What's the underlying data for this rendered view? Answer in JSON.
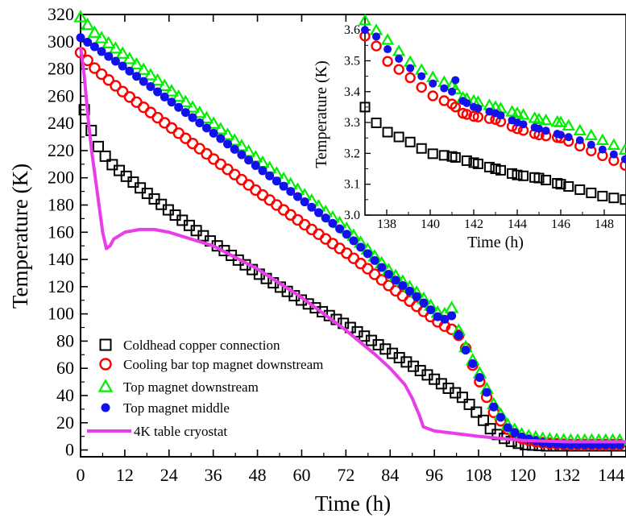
{
  "chart_data": [
    {
      "type": "scatter",
      "xlabel": "Time (h)",
      "ylabel": "Temperature (K)",
      "xlim": [
        0,
        148
      ],
      "ylim": [
        -5,
        320
      ],
      "xticks": [
        0,
        12,
        24,
        36,
        48,
        60,
        72,
        84,
        96,
        108,
        120,
        132,
        144
      ],
      "yticks": [
        0,
        20,
        40,
        60,
        80,
        100,
        120,
        140,
        160,
        180,
        200,
        220,
        240,
        260,
        280,
        300,
        320
      ],
      "legend_position": "lower-left",
      "grid": false,
      "series": [
        {
          "name": "Coldhead copper connection",
          "marker": "open-square",
          "color": "#000000",
          "curve": [
            [
              1,
              250
            ],
            [
              2,
              242
            ],
            [
              4,
              226
            ],
            [
              8,
              211
            ],
            [
              16,
              193
            ],
            [
              24,
              176
            ],
            [
              36,
              152
            ],
            [
              48,
              130
            ],
            [
              60,
              110
            ],
            [
              72,
              92
            ],
            [
              84,
              72
            ],
            [
              96,
              52
            ],
            [
              104,
              38
            ],
            [
              108,
              26
            ],
            [
              112,
              13
            ],
            [
              116,
              7
            ],
            [
              120,
              4
            ],
            [
              126,
              3
            ],
            [
              132,
              3
            ],
            [
              148,
              3
            ]
          ]
        },
        {
          "name": "Cooling bar top magnet downstream",
          "marker": "open-circle",
          "color": "#ff0000",
          "curve": [
            [
              0,
              292
            ],
            [
              4,
              280
            ],
            [
              12,
              262
            ],
            [
              24,
              238
            ],
            [
              36,
              214
            ],
            [
              48,
              190
            ],
            [
              60,
              167
            ],
            [
              72,
              145
            ],
            [
              78,
              133
            ],
            [
              84,
              120
            ],
            [
              92,
              104
            ],
            [
              98,
              92
            ],
            [
              102,
              87
            ],
            [
              104,
              78
            ],
            [
              108,
              52
            ],
            [
              112,
              28
            ],
            [
              116,
              15
            ],
            [
              120,
              8
            ],
            [
              126,
              5
            ],
            [
              132,
              4
            ],
            [
              148,
              4
            ]
          ]
        },
        {
          "name": "Top magnet downstream",
          "marker": "open-triangle",
          "color": "#00ee00",
          "curve": [
            [
              0,
              318
            ],
            [
              4,
              306
            ],
            [
              12,
              290
            ],
            [
              24,
              265
            ],
            [
              36,
              240
            ],
            [
              48,
              214
            ],
            [
              60,
              189
            ],
            [
              72,
              163
            ],
            [
              78,
              147
            ],
            [
              84,
              131
            ],
            [
              92,
              114
            ],
            [
              98,
              98
            ],
            [
              101,
              105
            ],
            [
              102,
              92
            ],
            [
              104,
              78
            ],
            [
              108,
              58
            ],
            [
              112,
              34
            ],
            [
              116,
              18
            ],
            [
              120,
              11
            ],
            [
              126,
              8
            ],
            [
              132,
              7
            ],
            [
              148,
              7
            ]
          ]
        },
        {
          "name": "Top magnet middle",
          "marker": "filled-circle",
          "color": "#1111ee",
          "curve": [
            [
              0,
              303
            ],
            [
              4,
              296
            ],
            [
              12,
              281
            ],
            [
              24,
              257
            ],
            [
              36,
              233
            ],
            [
              48,
              208
            ],
            [
              60,
              184
            ],
            [
              72,
              159
            ],
            [
              78,
              144
            ],
            [
              84,
              128
            ],
            [
              92,
              111
            ],
            [
              98,
              95
            ],
            [
              101,
              99
            ],
            [
              102,
              88
            ],
            [
              104,
              76
            ],
            [
              108,
              55
            ],
            [
              112,
              32
            ],
            [
              116,
              16
            ],
            [
              120,
              9
            ],
            [
              126,
              5
            ],
            [
              132,
              4
            ],
            [
              148,
              4
            ]
          ]
        },
        {
          "name": "4K table cryostat",
          "marker": "line",
          "color": "#e83de8",
          "curve": [
            [
              0,
              296
            ],
            [
              1,
              275
            ],
            [
              2,
              245
            ],
            [
              3,
              220
            ],
            [
              4,
              200
            ],
            [
              5,
              180
            ],
            [
              6,
              160
            ],
            [
              7,
              148
            ],
            [
              8,
              150
            ],
            [
              9,
              155
            ],
            [
              12,
              160
            ],
            [
              16,
              162
            ],
            [
              20,
              162
            ],
            [
              24,
              160
            ],
            [
              36,
              150
            ],
            [
              48,
              133
            ],
            [
              60,
              112
            ],
            [
              72,
              88
            ],
            [
              80,
              70
            ],
            [
              84,
              60
            ],
            [
              88,
              48
            ],
            [
              90,
              38
            ],
            [
              92,
              25
            ],
            [
              93,
              17
            ],
            [
              96,
              14
            ],
            [
              108,
              10
            ],
            [
              120,
              7
            ],
            [
              132,
              6
            ],
            [
              148,
              6
            ]
          ]
        }
      ]
    },
    {
      "type": "scatter",
      "xlabel": "Time (h)",
      "ylabel": "Temperature (K)",
      "xlim": [
        137,
        149
      ],
      "ylim": [
        3.0,
        3.65
      ],
      "xticks": [
        138,
        140,
        142,
        144,
        146,
        148
      ],
      "yticks": [
        3.0,
        3.1,
        3.2,
        3.3,
        3.4,
        3.5,
        3.6
      ],
      "grid": false,
      "series": [
        {
          "marker": "open-square",
          "color": "#000000",
          "curve": [
            [
              137,
              3.35
            ],
            [
              137.5,
              3.3
            ],
            [
              138,
              3.27
            ],
            [
              139,
              3.24
            ],
            [
              140,
              3.2
            ],
            [
              141,
              3.19
            ],
            [
              142,
              3.17
            ],
            [
              143,
              3.15
            ],
            [
              144,
              3.13
            ],
            [
              145,
              3.12
            ],
            [
              146,
              3.1
            ],
            [
              147,
              3.08
            ],
            [
              148,
              3.06
            ],
            [
              149,
              3.05
            ]
          ]
        },
        {
          "marker": "open-circle",
          "color": "#ff0000",
          "curve": [
            [
              137,
              3.58
            ],
            [
              137.5,
              3.55
            ],
            [
              138,
              3.5
            ],
            [
              139,
              3.45
            ],
            [
              140,
              3.39
            ],
            [
              141,
              3.36
            ],
            [
              141.5,
              3.33
            ],
            [
              142,
              3.32
            ],
            [
              143,
              3.31
            ],
            [
              144,
              3.28
            ],
            [
              145,
              3.26
            ],
            [
              146,
              3.25
            ],
            [
              147,
              3.22
            ],
            [
              148,
              3.19
            ],
            [
              149,
              3.16
            ]
          ]
        },
        {
          "marker": "open-triangle",
          "color": "#00ee00",
          "curve": [
            [
              137,
              3.63
            ],
            [
              137.5,
              3.6
            ],
            [
              138,
              3.57
            ],
            [
              139,
              3.5
            ],
            [
              140,
              3.45
            ],
            [
              141,
              3.42
            ],
            [
              141.5,
              3.38
            ],
            [
              142,
              3.37
            ],
            [
              143,
              3.35
            ],
            [
              144,
              3.33
            ],
            [
              145,
              3.31
            ],
            [
              146,
              3.3
            ],
            [
              147,
              3.27
            ],
            [
              148,
              3.24
            ],
            [
              149,
              3.21
            ]
          ]
        },
        {
          "marker": "filled-circle",
          "color": "#1111ee",
          "curve": [
            [
              137,
              3.6
            ],
            [
              137.5,
              3.58
            ],
            [
              138,
              3.54
            ],
            [
              139,
              3.48
            ],
            [
              140,
              3.43
            ],
            [
              141,
              3.4
            ],
            [
              141.3,
              3.47
            ],
            [
              141.5,
              3.37
            ],
            [
              142,
              3.35
            ],
            [
              143,
              3.33
            ],
            [
              144,
              3.3
            ],
            [
              145,
              3.28
            ],
            [
              146,
              3.26
            ],
            [
              147,
              3.24
            ],
            [
              148,
              3.21
            ],
            [
              149,
              3.18
            ]
          ]
        }
      ]
    }
  ]
}
